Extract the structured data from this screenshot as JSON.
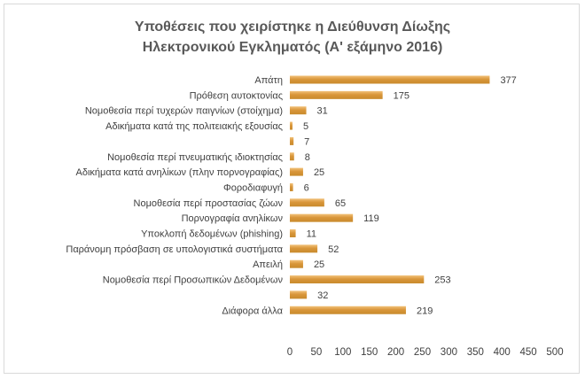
{
  "chart_data": {
    "type": "bar",
    "orientation": "horizontal",
    "title": [
      "Υποθέσεις που χειρίστηκε η Διεύθυνση Δίωξης",
      "Ηλεκτρονικού Εγκληματός (Α' εξάμηνο 2016)"
    ],
    "categories": [
      "Απάτη",
      "Πρόθεση αυτοκτονίας",
      "Νομοθεσία περί τυχερών παιγνίων (στοίχημα)",
      "Αδικήματα κατά της πολιτειακής εξουσίας",
      "",
      "Νομοθεσία περί πνευματικής ιδιοκτησίας",
      "Αδικήματα κατά ανηλίκων (πλην πορνογραφίας)",
      "Φοροδιαφυγή",
      "Νομοθεσία περί προστασίας ζώων",
      "Πορνογραφία ανηλίκων",
      "Υποκλοπή δεδομένων (phishing)",
      "Παράνομη πρόσβαση σε υπολογιστικά συστήματα",
      "Απειλή",
      "Νομοθεσία περί Προσωπικών Δεδομένων",
      "",
      "Διάφορα άλλα"
    ],
    "values": [
      377,
      175,
      31,
      5,
      7,
      8,
      25,
      6,
      65,
      119,
      11,
      52,
      25,
      253,
      32,
      219
    ],
    "xlim": [
      0,
      500
    ],
    "xticks": [
      0,
      50,
      100,
      150,
      200,
      250,
      300,
      350,
      400,
      450,
      500
    ],
    "grid": false,
    "legend": "none",
    "bar_color": "#c88a2c",
    "bar_highlight": "#f2c27a"
  }
}
